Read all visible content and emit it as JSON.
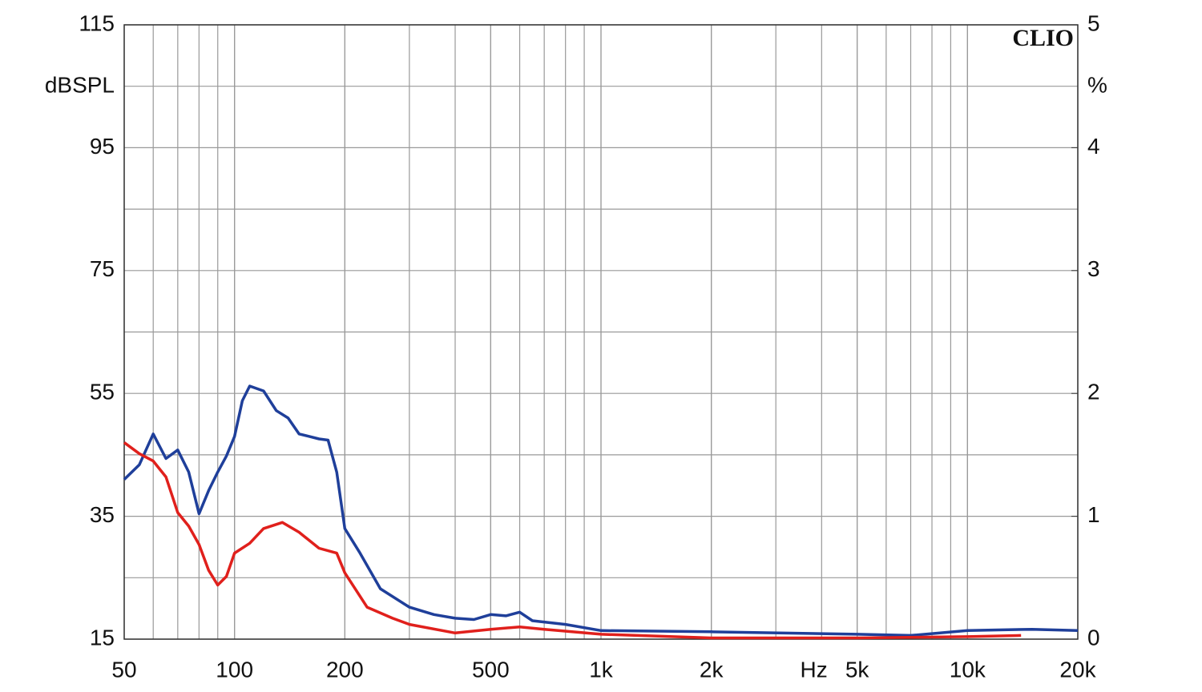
{
  "chart_data": {
    "type": "line",
    "watermark": "CLIO",
    "y_label": "dBSPL",
    "y2_label": "%",
    "x_label": "Hz",
    "xscale": "log",
    "xlim": [
      50,
      20000
    ],
    "xticks": [
      50,
      100,
      200,
      500,
      {
        "value": 1000,
        "label": "1k"
      },
      {
        "value": 2000,
        "label": "2k"
      },
      {
        "value": 5000,
        "label": "5k"
      },
      {
        "value": 10000,
        "label": "10k"
      },
      {
        "value": 20000,
        "label": "20k"
      }
    ],
    "ylim": [
      15,
      115
    ],
    "yticks": [
      15,
      35,
      55,
      75,
      95,
      115
    ],
    "y2lim": [
      0,
      5
    ],
    "y2ticks": [
      0,
      1,
      2,
      3,
      4,
      5
    ],
    "grid": true,
    "series": [
      {
        "color": "#1f3f9a",
        "axis": "y2",
        "x": [
          50,
          55,
          60,
          65,
          70,
          75,
          80,
          85,
          90,
          95,
          100,
          105,
          110,
          120,
          130,
          140,
          150,
          160,
          170,
          180,
          190,
          200,
          220,
          250,
          300,
          350,
          400,
          450,
          500,
          550,
          600,
          650,
          800,
          1000,
          2000,
          5000,
          7000,
          10000,
          15000,
          20000
        ],
        "values": [
          1.3,
          1.42,
          1.67,
          1.47,
          1.54,
          1.36,
          1.02,
          1.21,
          1.36,
          1.49,
          1.65,
          1.94,
          2.06,
          2.02,
          1.86,
          1.8,
          1.67,
          1.65,
          1.63,
          1.62,
          1.36,
          0.9,
          0.7,
          0.41,
          0.26,
          0.2,
          0.17,
          0.16,
          0.2,
          0.19,
          0.22,
          0.15,
          0.12,
          0.07,
          0.06,
          0.04,
          0.03,
          0.07,
          0.08,
          0.07
        ]
      },
      {
        "color": "#e0201c",
        "axis": "y2",
        "x": [
          50,
          55,
          60,
          65,
          70,
          75,
          80,
          85,
          90,
          95,
          100,
          110,
          120,
          135,
          150,
          170,
          190,
          200,
          230,
          270,
          300,
          400,
          500,
          600,
          700,
          1000,
          2000,
          5000,
          10000,
          14000
        ],
        "values": [
          1.6,
          1.51,
          1.45,
          1.32,
          1.03,
          0.92,
          0.77,
          0.56,
          0.44,
          0.51,
          0.7,
          0.78,
          0.9,
          0.95,
          0.87,
          0.74,
          0.7,
          0.54,
          0.26,
          0.17,
          0.12,
          0.05,
          0.08,
          0.1,
          0.08,
          0.04,
          0.01,
          0.01,
          0.02,
          0.03
        ]
      }
    ]
  }
}
